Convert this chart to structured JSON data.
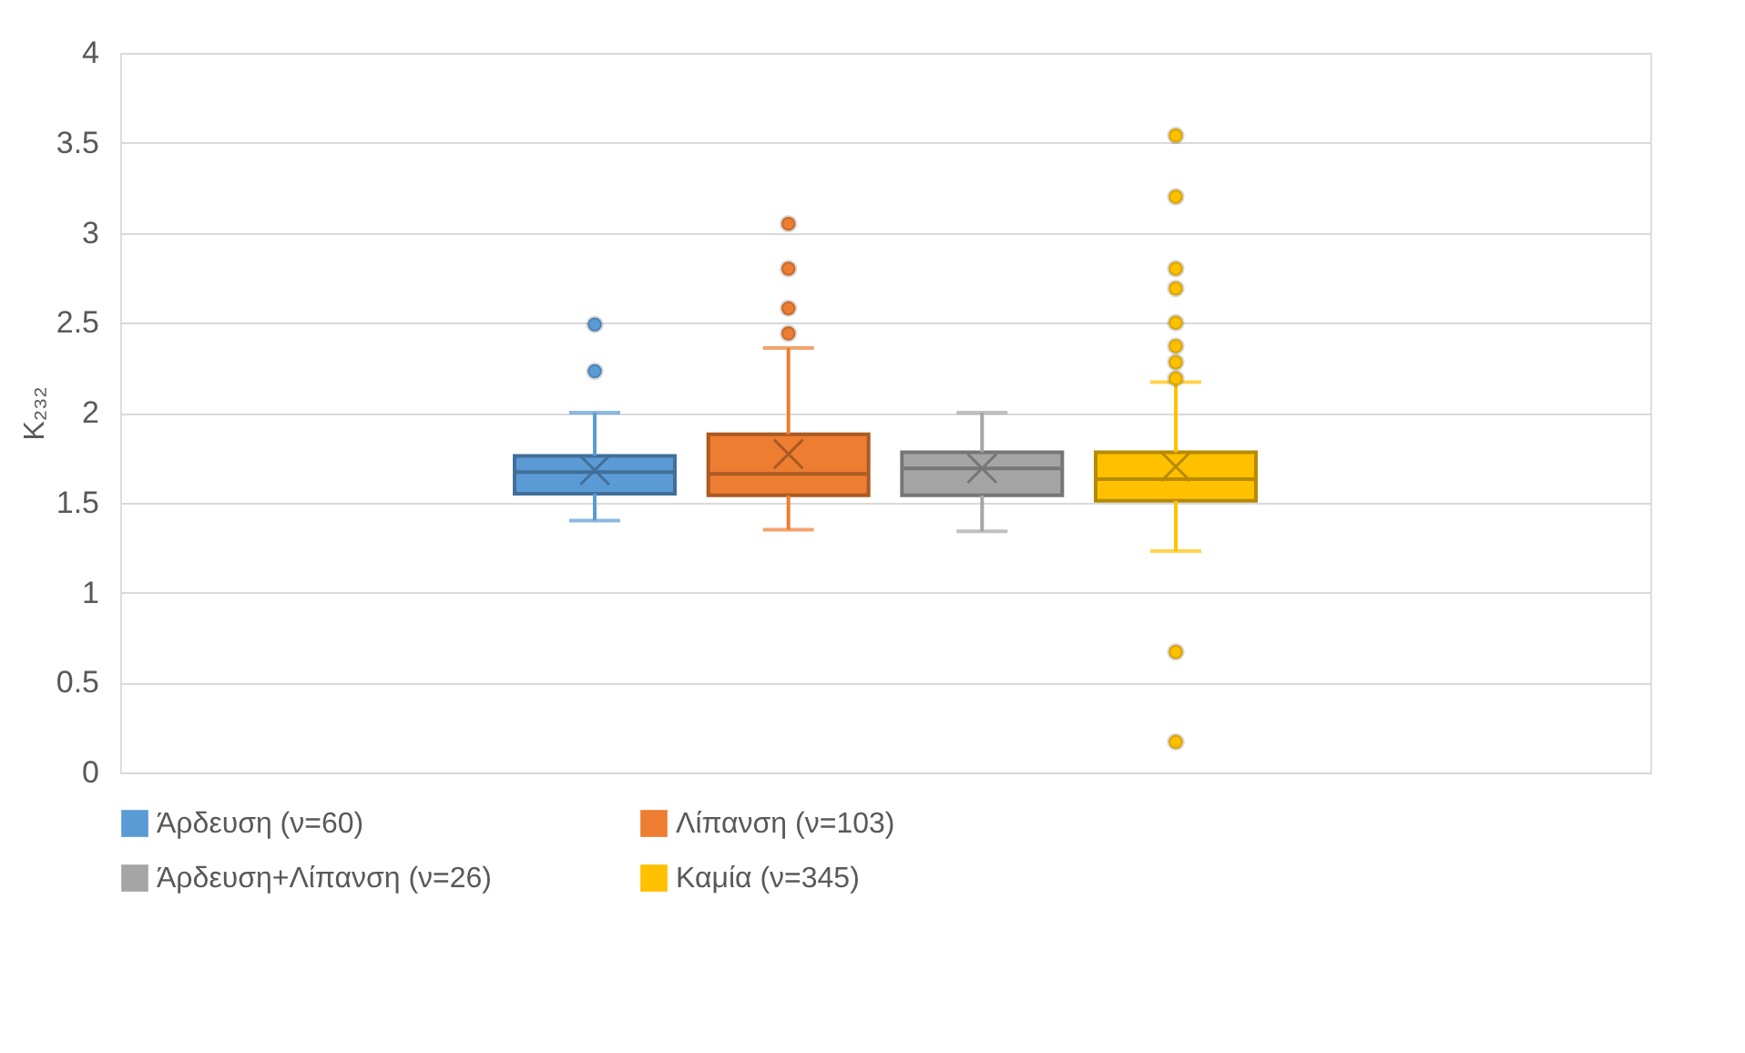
{
  "chart_data": {
    "type": "box",
    "categories": [
      null
    ],
    "ylabel": "K₂₃₂",
    "ylim": [
      0,
      4
    ],
    "yticks": [
      {
        "value": 0,
        "label": "0"
      },
      0.5,
      {
        "value": 1,
        "label": "1"
      },
      1.5,
      {
        "value": 2,
        "label": "2"
      },
      2.5,
      {
        "value": 3,
        "label": "3"
      },
      3.5,
      {
        "value": 4,
        "label": "4"
      }
    ],
    "grid": "y",
    "legend": "bottom",
    "series": [
      {
        "name": "Άρδευση (ν=60)",
        "color": "#5b9bd5",
        "boxes": [
          {
            "low": 1.4,
            "q1": 1.55,
            "median": 1.67,
            "q3": 1.76,
            "high": 2.0,
            "mean": 1.68,
            "outliers": [
              2.23,
              2.49
            ]
          }
        ]
      },
      {
        "name": "Λίπανση (ν=103)",
        "color": "#ed7d31",
        "boxes": [
          {
            "low": 1.35,
            "q1": 1.54,
            "median": 1.66,
            "q3": 1.88,
            "high": 2.36,
            "mean": 1.77,
            "outliers": [
              2.44,
              2.58,
              2.8,
              3.05
            ]
          }
        ]
      },
      {
        "name": "Άρδευση+Λίπανση (ν=26)",
        "color": "#a5a5a5",
        "boxes": [
          {
            "low": 1.34,
            "q1": 1.54,
            "median": 1.69,
            "q3": 1.78,
            "high": 2.0,
            "mean": 1.69
          }
        ]
      },
      {
        "name": "Καμία (ν=345)",
        "color": "#ffc000",
        "boxes": [
          {
            "low": 1.23,
            "q1": 1.51,
            "median": 1.63,
            "q3": 1.78,
            "high": 2.17,
            "mean": 1.7,
            "outliers": [
              0.17,
              0.67,
              2.19,
              2.28,
              2.37,
              2.5,
              2.69,
              2.8,
              3.2,
              3.54
            ]
          }
        ]
      }
    ]
  }
}
